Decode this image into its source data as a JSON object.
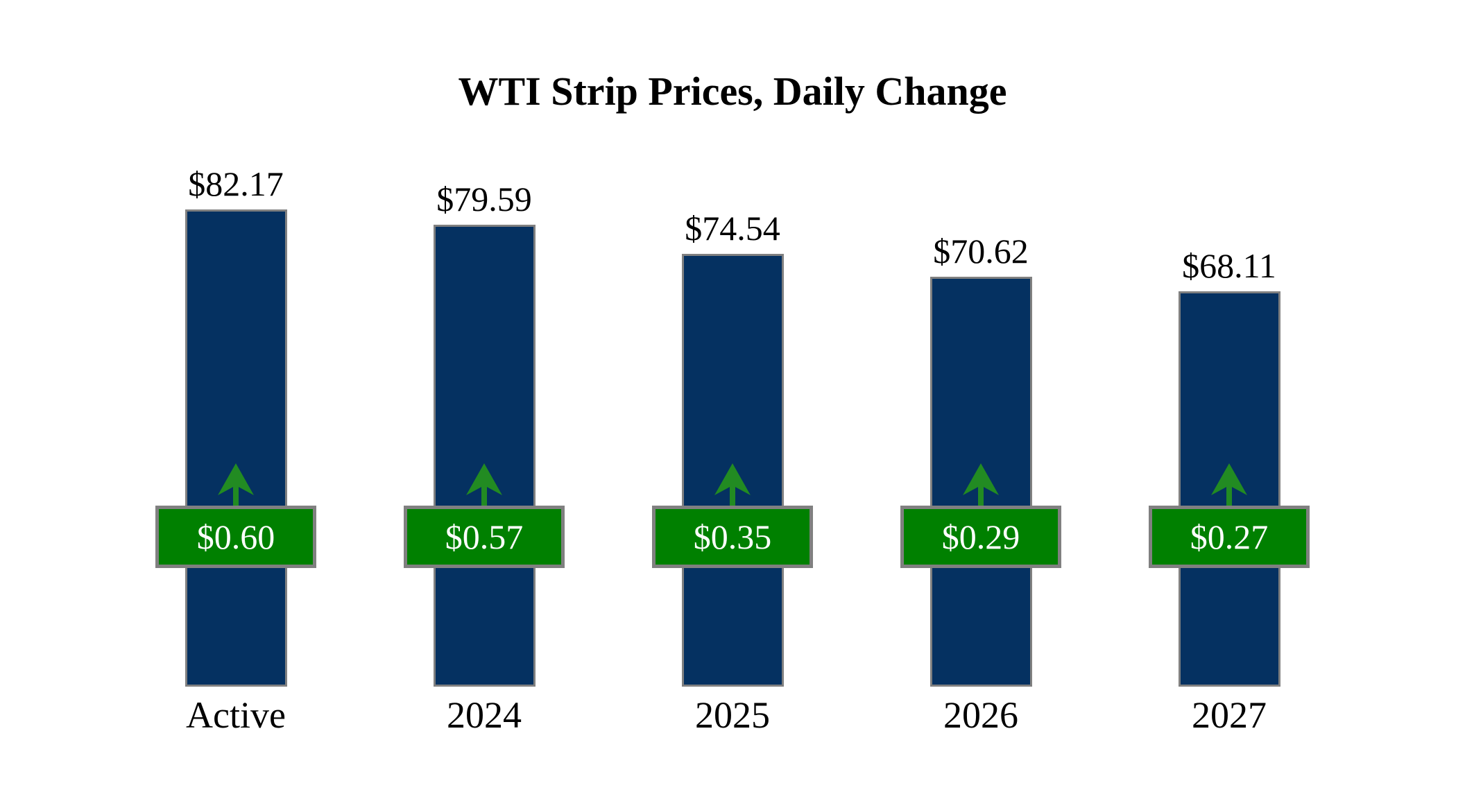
{
  "title": "WTI Strip Prices, Daily Change",
  "chart_data": {
    "type": "bar",
    "title": "WTI Strip Prices, Daily Change",
    "categories": [
      "Active",
      "2024",
      "2025",
      "2026",
      "2027"
    ],
    "series": [
      {
        "name": "WTI Strip Price",
        "values": [
          82.17,
          79.59,
          74.54,
          70.62,
          68.11
        ],
        "labels": [
          "$82.17",
          "$79.59",
          "$74.54",
          "$70.62",
          "$68.11"
        ]
      },
      {
        "name": "Daily Change",
        "values": [
          0.6,
          0.57,
          0.35,
          0.29,
          0.27
        ],
        "labels": [
          "$0.60",
          "$0.57",
          "$0.35",
          "$0.29",
          "$0.27"
        ],
        "direction": "up"
      }
    ],
    "ylim": [
      0,
      82.17
    ],
    "grid": false,
    "legend": false,
    "axes_visible": false,
    "colors": {
      "bar": "#053161",
      "badge": "#008000",
      "arrow": "#228B22",
      "border": "#808080",
      "badge_text": "#ffffff",
      "text": "#000000",
      "background": "#ffffff"
    }
  }
}
